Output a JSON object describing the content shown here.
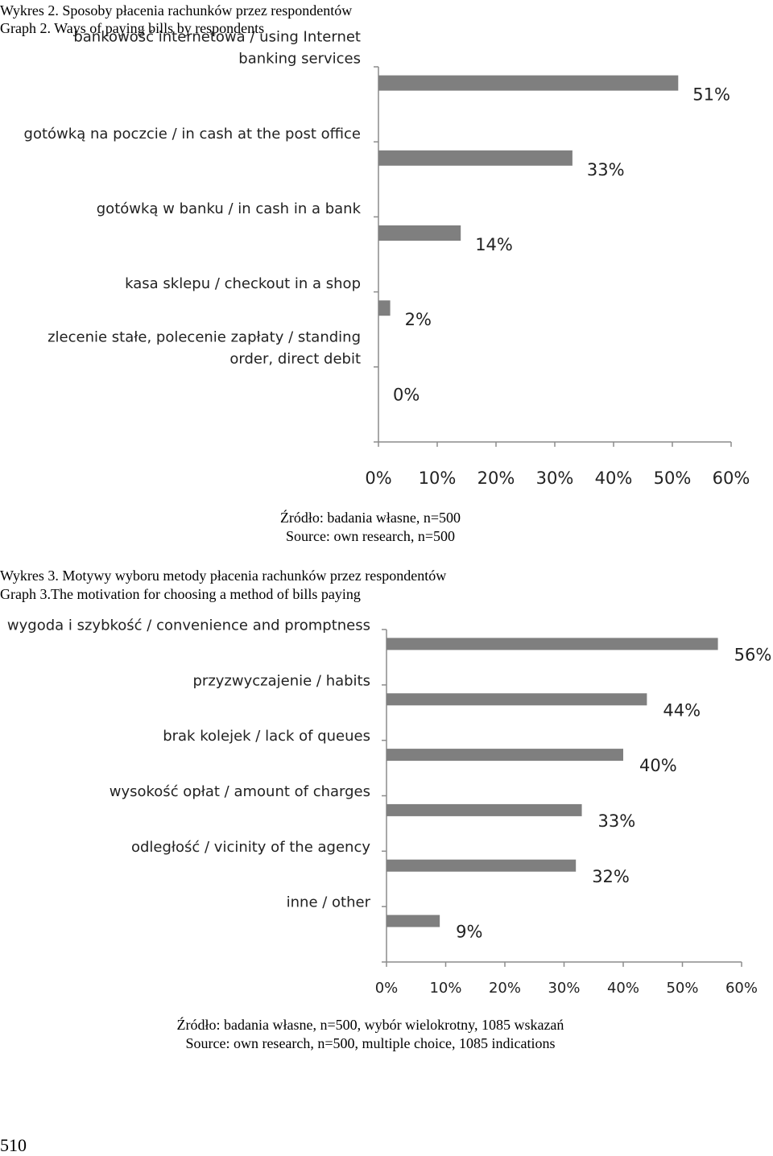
{
  "chart_data": [
    {
      "type": "bar",
      "orientation": "horizontal",
      "caption_pl": "Wykres 2. Sposoby płacenia rachunków przez respondentów",
      "caption_en": "Graph 2. Ways of paying bills by respondents",
      "categories": [
        [
          "bankowość internetowa / using Internet",
          "banking services"
        ],
        [
          "gotówką na poczcie / in cash at the post office"
        ],
        [
          "gotówką w banku / in cash in a bank"
        ],
        [
          "kasa sklepu / checkout in a shop"
        ],
        [
          "zlecenie stałe, polecenie zapłaty / standing",
          "order, direct debit"
        ]
      ],
      "values": [
        51,
        33,
        14,
        2,
        0
      ],
      "value_labels": [
        "51%",
        "33%",
        "14%",
        "2%",
        "0%"
      ],
      "xlim": [
        0,
        60
      ],
      "ticks": [
        "0%",
        "10%",
        "20%",
        "30%",
        "40%",
        "50%",
        "60%"
      ],
      "bar_color": "#7f7f7f",
      "source_pl": "Źródło: badania własne, n=500",
      "source_en": "Source: own research, n=500"
    },
    {
      "type": "bar",
      "orientation": "horizontal",
      "caption_pl": "Wykres 3. Motywy wyboru metody płacenia rachunków przez respondentów",
      "caption_en": "Graph 3.The motivation for choosing a method of bills paying",
      "categories": [
        [
          "wygoda i szybkość / convenience and promptness"
        ],
        [
          "przyzwyczajenie / habits"
        ],
        [
          "brak kolejek / lack of queues"
        ],
        [
          "wysokość opłat / amount of charges"
        ],
        [
          "odległość / vicinity of the agency"
        ],
        [
          "inne / other"
        ]
      ],
      "values": [
        56,
        44,
        40,
        33,
        32,
        9
      ],
      "value_labels": [
        "56%",
        "44%",
        "40%",
        "33%",
        "32%",
        "9%"
      ],
      "xlim": [
        0,
        60
      ],
      "ticks": [
        "0%",
        "10%",
        "20%",
        "30%",
        "40%",
        "50%",
        "60%"
      ],
      "bar_color": "#7f7f7f",
      "source_pl": "Źródło: badania własne, n=500, wybór wielokrotny, 1085 wskazań",
      "source_en": "Source: own research, n=500, multiple choice, 1085 indications"
    }
  ],
  "page_number": "510"
}
